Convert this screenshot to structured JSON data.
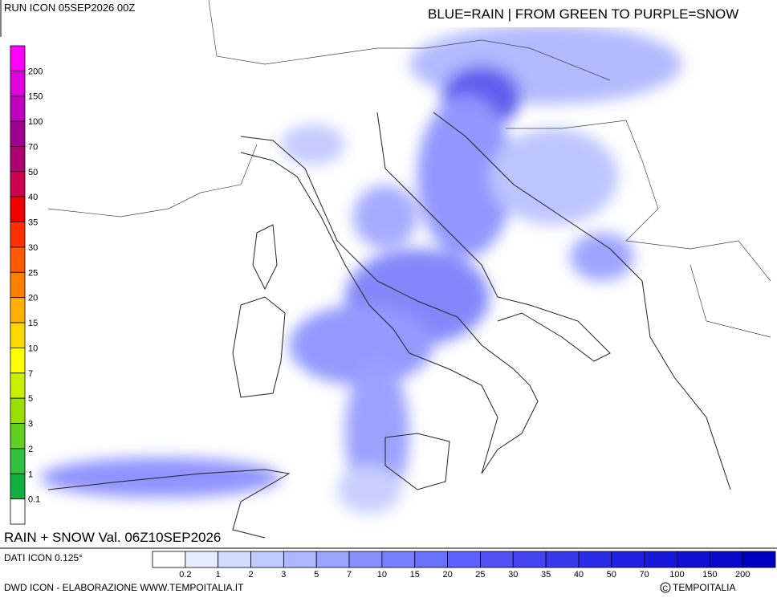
{
  "header": {
    "run": "RUN ICON 05SEP2026 00Z",
    "legend_text": "BLUE=RAIN | FROM GREEN TO PURPLE=SNOW"
  },
  "snow_scale": {
    "labels": [
      200,
      150,
      100,
      70,
      50,
      40,
      35,
      30,
      25,
      20,
      15,
      10,
      7,
      5,
      3,
      2,
      1,
      0.1
    ],
    "colors": [
      "#ff00ff",
      "#e000e0",
      "#c000c0",
      "#a00090",
      "#b00070",
      "#d00050",
      "#f00000",
      "#ff3000",
      "#ff5a00",
      "#ff8000",
      "#ffb000",
      "#ffd800",
      "#ffff00",
      "#c8f000",
      "#98e000",
      "#60d020",
      "#30c040",
      "#10b040",
      "#ffffff"
    ]
  },
  "rain_scale": {
    "labels": [
      0.2,
      1,
      2,
      3,
      5,
      7,
      10,
      15,
      20,
      25,
      30,
      35,
      40,
      50,
      70,
      100,
      150,
      200
    ],
    "colors": [
      "#ffffff",
      "#e4ecff",
      "#d2dcff",
      "#c0ccff",
      "#acb8ff",
      "#98a4ff",
      "#8890ff",
      "#7880ff",
      "#6870ff",
      "#5c60ff",
      "#5050f4",
      "#4444f0",
      "#3838ec",
      "#2c2ce8",
      "#2020e4",
      "#1818dc",
      "#1010d4",
      "#0808cc",
      "#0000c0"
    ]
  },
  "footer": {
    "valid": "RAIN + SNOW Val. 06Z10SEP2026",
    "dati": "DATI ICON 0.125°",
    "credit": "DWD ICON - ELABORAZIONE WWW.TEMPOITALIA.IT",
    "copyright": "TEMPOITALIA"
  }
}
